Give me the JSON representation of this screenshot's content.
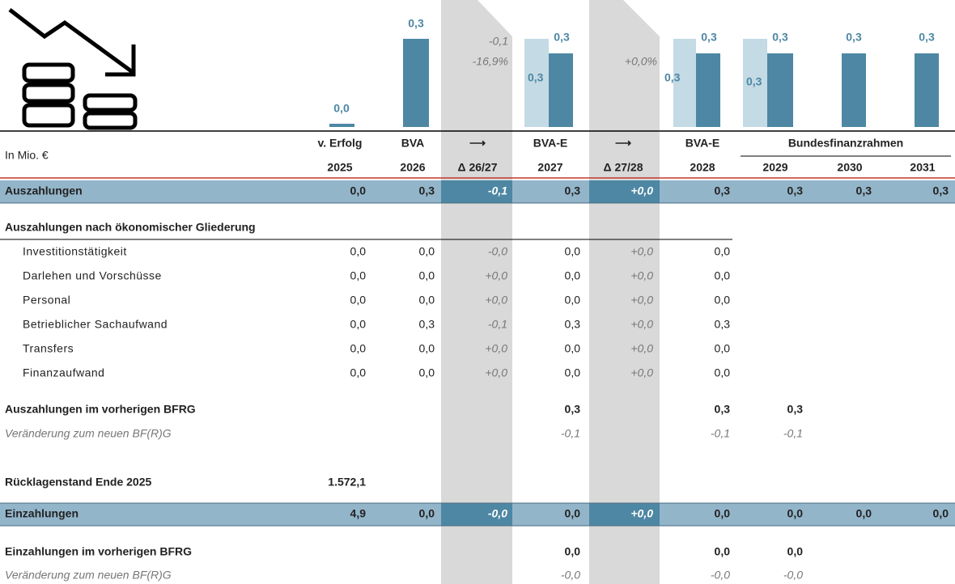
{
  "header": {
    "unit": "In Mio. €",
    "row1": [
      "v. Erfolg",
      "BVA",
      "⟶",
      "BVA-E",
      "⟶",
      "BVA-E"
    ],
    "group": "Bundesfinanzrahmen",
    "row2": [
      "2025",
      "2026",
      "Δ 26/27",
      "2027",
      "Δ 27/28",
      "2028",
      "2029",
      "2030",
      "2031"
    ]
  },
  "chart": {
    "labels": [
      {
        "text": "0,0"
      },
      {
        "text": "0,3"
      },
      {
        "text": "0,3",
        "previous": "0,3",
        "delta": "-0,1",
        "delta_pct": "-16,9%"
      },
      {
        "text": "0,3",
        "previous": "0,3",
        "delta_pct": "+0,0%"
      },
      {
        "text": "0,3",
        "previous": "0,3"
      },
      {
        "text": "0,3"
      },
      {
        "text": "0,3"
      }
    ]
  },
  "rows": [
    {
      "label": "Auszahlungen",
      "cells": [
        "0,0",
        "0,3",
        "-0,1",
        "0,3",
        "+0,0",
        "0,3",
        "0,3",
        "0,3",
        "0,3"
      ]
    },
    {
      "label": "Auszahlungen nach ökonomischer Gliederung",
      "cells": []
    },
    {
      "label": "Investitionstätigkeit",
      "cells": [
        "0,0",
        "0,0",
        "-0,0",
        "0,0",
        "+0,0",
        "0,0"
      ]
    },
    {
      "label": "Darlehen und Vorschüsse",
      "cells": [
        "0,0",
        "0,0",
        "+0,0",
        "0,0",
        "+0,0",
        "0,0"
      ]
    },
    {
      "label": "Personal",
      "cells": [
        "0,0",
        "0,0",
        "+0,0",
        "0,0",
        "+0,0",
        "0,0"
      ]
    },
    {
      "label": "Betrieblicher Sachaufwand",
      "cells": [
        "0,0",
        "0,3",
        "-0,1",
        "0,3",
        "+0,0",
        "0,3"
      ]
    },
    {
      "label": "Transfers",
      "cells": [
        "0,0",
        "0,0",
        "+0,0",
        "0,0",
        "+0,0",
        "0,0"
      ]
    },
    {
      "label": "Finanzaufwand",
      "cells": [
        "0,0",
        "0,0",
        "+0,0",
        "0,0",
        "+0,0",
        "0,0"
      ]
    },
    {
      "label": "Auszahlungen im vorherigen BFRG",
      "cells": [
        null,
        null,
        null,
        "0,3",
        null,
        "0,3",
        "0,3"
      ]
    },
    {
      "label": "Veränderung zum neuen BF(R)G",
      "cells": [
        null,
        null,
        null,
        "-0,1",
        null,
        "-0,1",
        "-0,1"
      ]
    },
    {
      "label": "Rücklagenstand Ende 2025",
      "cells": [
        "1.572,1"
      ]
    },
    {
      "label": "Einzahlungen",
      "cells": [
        "4,9",
        "0,0",
        "-0,0",
        "0,0",
        "+0,0",
        "0,0",
        "0,0",
        "0,0",
        "0,0"
      ]
    },
    {
      "label": "Einzahlungen im vorherigen BFRG",
      "cells": [
        null,
        null,
        null,
        "0,0",
        null,
        "0,0",
        "0,0"
      ]
    },
    {
      "label": "Veränderung zum neuen BF(R)G",
      "cells": [
        null,
        null,
        null,
        "-0,0",
        null,
        "-0,0",
        "-0,0"
      ]
    }
  ]
}
